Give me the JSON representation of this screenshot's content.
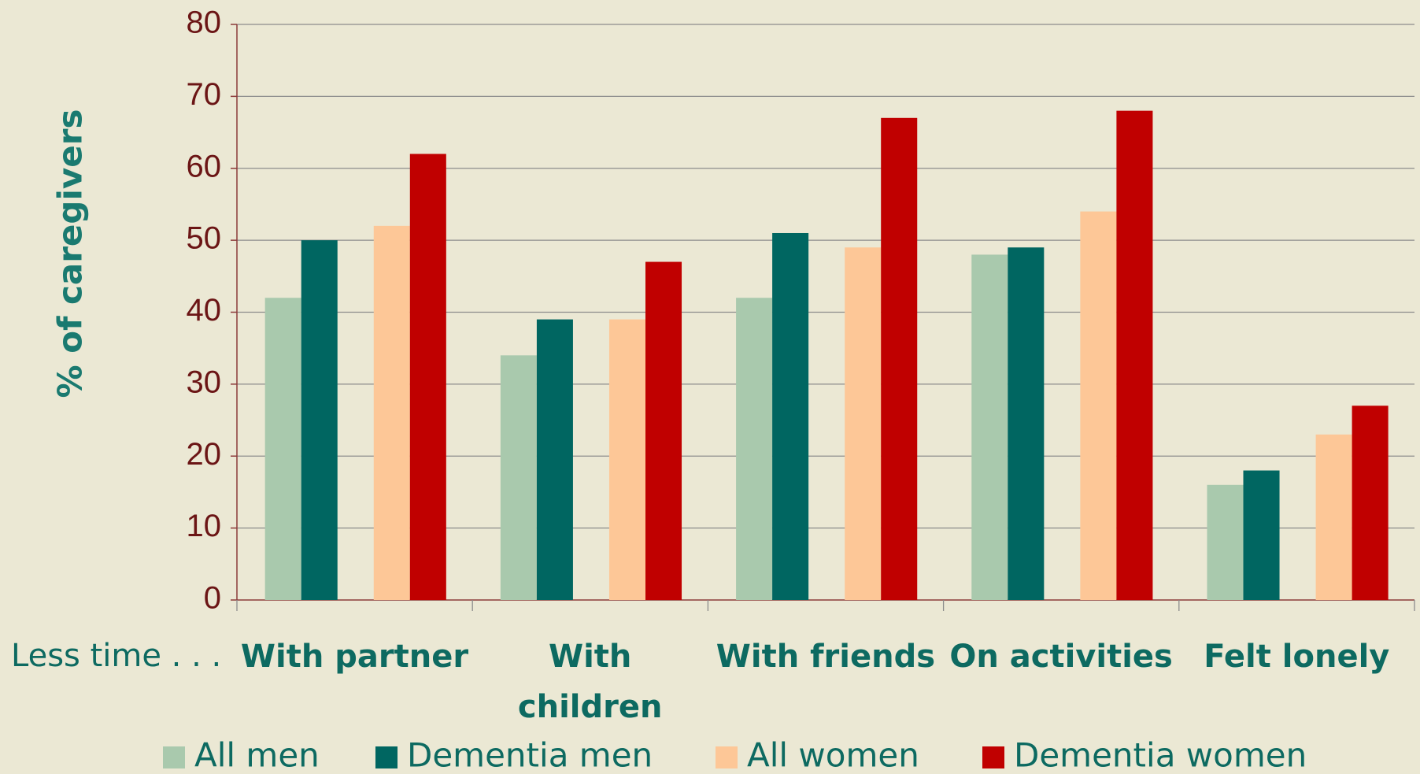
{
  "chart_data": {
    "type": "bar",
    "y_label": "% of caregivers",
    "annotation": "Less time . . .",
    "categories": [
      "With partner",
      "With\nchildren",
      "With friends",
      "On activities",
      "Felt lonely"
    ],
    "series": [
      {
        "name": "All men",
        "color": "#a9c9ad",
        "values": [
          42,
          34,
          42,
          48,
          16
        ]
      },
      {
        "name": "Dementia men",
        "color": "#006661",
        "values": [
          50,
          39,
          51,
          49,
          18
        ]
      },
      {
        "name": "All women",
        "color": "#fdc797",
        "values": [
          52,
          39,
          49,
          54,
          23
        ]
      },
      {
        "name": "Dementia women",
        "color": "#c00000",
        "values": [
          62,
          47,
          67,
          68,
          27
        ]
      }
    ],
    "ylim": [
      0,
      80
    ],
    "yticks": [
      0,
      10,
      20,
      30,
      40,
      50,
      60,
      70,
      80
    ],
    "grid": true,
    "legend": "bottom"
  }
}
